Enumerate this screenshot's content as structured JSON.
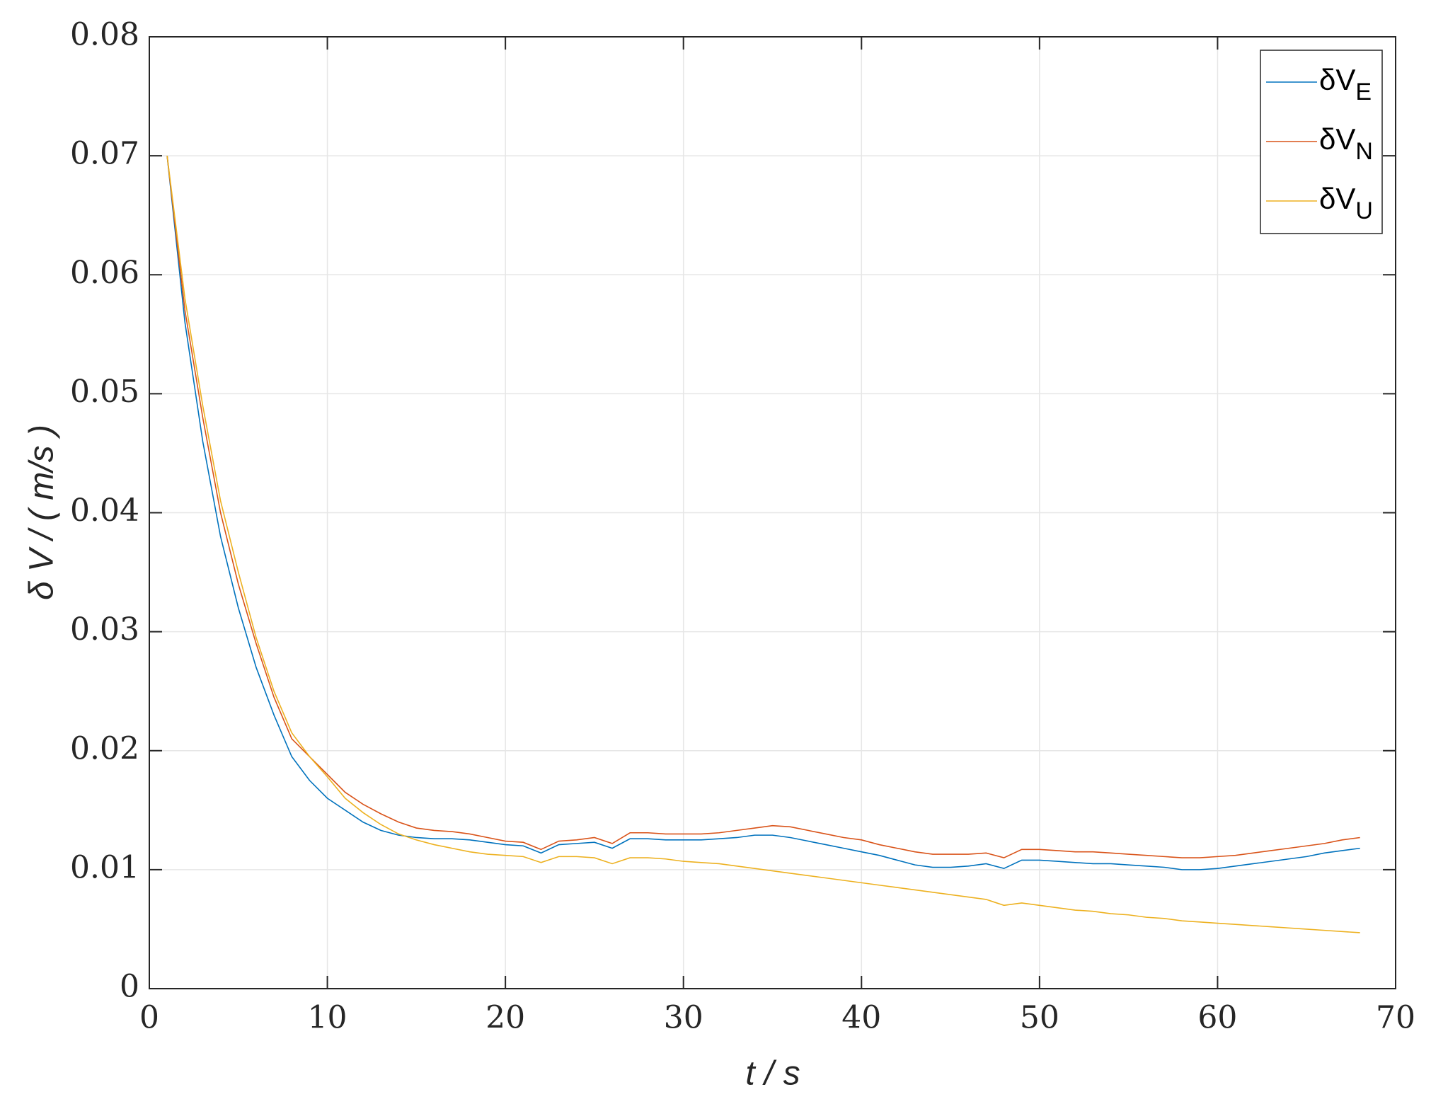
{
  "chart_data": {
    "type": "line",
    "xlabel": "t  / s",
    "ylabel": "δ V / ( m/s )",
    "xlim": [
      0,
      70
    ],
    "xticks": [
      0,
      10,
      20,
      30,
      40,
      50,
      60,
      70
    ],
    "ylim": [
      0,
      0.08
    ],
    "yticks": [
      0,
      0.01,
      0.02,
      0.03,
      0.04,
      0.05,
      0.06,
      0.07,
      0.08
    ],
    "grid": true,
    "legend": "northeast",
    "x": [
      1,
      2,
      3,
      4,
      5,
      6,
      7,
      8,
      9,
      10,
      11,
      12,
      13,
      14,
      15,
      16,
      17,
      18,
      19,
      20,
      21,
      22,
      23,
      24,
      25,
      26,
      27,
      28,
      29,
      30,
      31,
      32,
      33,
      34,
      35,
      36,
      37,
      38,
      39,
      40,
      41,
      42,
      43,
      44,
      45,
      46,
      47,
      48,
      49,
      50,
      51,
      52,
      53,
      54,
      55,
      56,
      57,
      58,
      59,
      60,
      61,
      62,
      63,
      64,
      65,
      66,
      67,
      68
    ],
    "series": [
      {
        "name": "δVE",
        "color": "#0072bd",
        "values": [
          0.07,
          0.056,
          0.046,
          0.038,
          0.032,
          0.027,
          0.023,
          0.0195,
          0.0175,
          0.016,
          0.015,
          0.014,
          0.0133,
          0.0129,
          0.0127,
          0.0126,
          0.0126,
          0.0125,
          0.0123,
          0.0121,
          0.012,
          0.0114,
          0.0121,
          0.0122,
          0.0123,
          0.0118,
          0.0126,
          0.0126,
          0.0125,
          0.0125,
          0.0125,
          0.0126,
          0.0127,
          0.0129,
          0.0129,
          0.0127,
          0.0124,
          0.0121,
          0.0118,
          0.0115,
          0.0112,
          0.0108,
          0.0104,
          0.0102,
          0.0102,
          0.0103,
          0.0105,
          0.0101,
          0.0108,
          0.0108,
          0.0107,
          0.0106,
          0.0105,
          0.0105,
          0.0104,
          0.0103,
          0.0102,
          0.01,
          0.01,
          0.0101,
          0.0103,
          0.0105,
          0.0107,
          0.0109,
          0.0111,
          0.0114,
          0.0116,
          0.0118
        ]
      },
      {
        "name": "δVN",
        "color": "#d95319",
        "values": [
          0.07,
          0.057,
          0.048,
          0.04,
          0.034,
          0.029,
          0.0245,
          0.021,
          0.0195,
          0.018,
          0.0165,
          0.0155,
          0.0147,
          0.014,
          0.0135,
          0.0133,
          0.0132,
          0.013,
          0.0127,
          0.0124,
          0.0123,
          0.0117,
          0.0124,
          0.0125,
          0.0127,
          0.0122,
          0.0131,
          0.0131,
          0.013,
          0.013,
          0.013,
          0.0131,
          0.0133,
          0.0135,
          0.0137,
          0.0136,
          0.0133,
          0.013,
          0.0127,
          0.0125,
          0.0121,
          0.0118,
          0.0115,
          0.0113,
          0.0113,
          0.0113,
          0.0114,
          0.011,
          0.0117,
          0.0117,
          0.0116,
          0.0115,
          0.0115,
          0.0114,
          0.0113,
          0.0112,
          0.0111,
          0.011,
          0.011,
          0.0111,
          0.0112,
          0.0114,
          0.0116,
          0.0118,
          0.012,
          0.0122,
          0.0125,
          0.0127
        ]
      },
      {
        "name": "δVU",
        "color": "#edb120",
        "values": [
          0.07,
          0.058,
          0.049,
          0.041,
          0.035,
          0.0295,
          0.025,
          0.0215,
          0.0195,
          0.0178,
          0.016,
          0.0148,
          0.0138,
          0.013,
          0.0125,
          0.0121,
          0.0118,
          0.0115,
          0.0113,
          0.0112,
          0.0111,
          0.0106,
          0.0111,
          0.0111,
          0.011,
          0.0105,
          0.011,
          0.011,
          0.0109,
          0.0107,
          0.0106,
          0.0105,
          0.0103,
          0.0101,
          0.0099,
          0.0097,
          0.0095,
          0.0093,
          0.0091,
          0.0089,
          0.0087,
          0.0085,
          0.0083,
          0.0081,
          0.0079,
          0.0077,
          0.0075,
          0.007,
          0.0072,
          0.007,
          0.0068,
          0.0066,
          0.0065,
          0.0063,
          0.0062,
          0.006,
          0.0059,
          0.0057,
          0.0056,
          0.0055,
          0.0054,
          0.0053,
          0.0052,
          0.0051,
          0.005,
          0.0049,
          0.0048,
          0.0047
        ]
      }
    ]
  }
}
